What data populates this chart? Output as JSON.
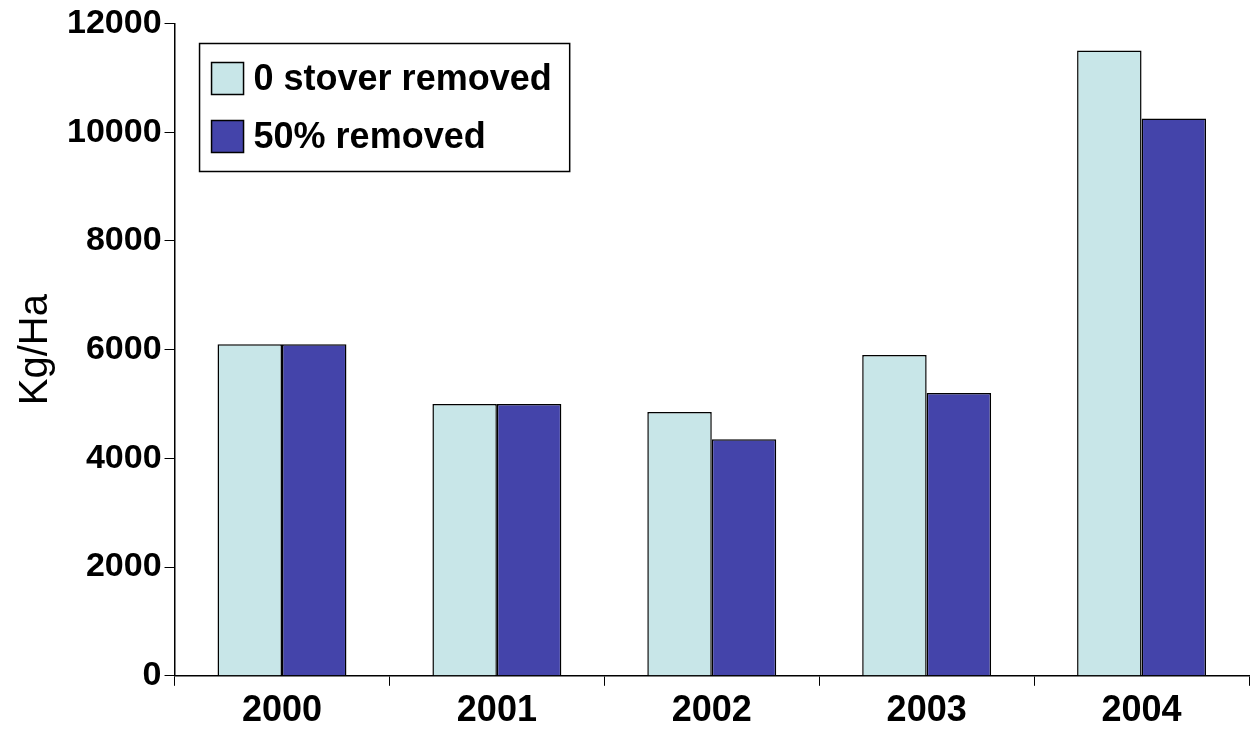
{
  "chart_data": {
    "type": "bar",
    "ylabel": "Kg/Ha",
    "categories": [
      "2000",
      "2001",
      "2002",
      "2003",
      "2004"
    ],
    "series": [
      {
        "name": "0 stover removed",
        "color": "#c8e6e8",
        "values": [
          6100,
          5000,
          4850,
          5900,
          11500
        ]
      },
      {
        "name": "50% removed",
        "color": "#4444aa",
        "values": [
          6100,
          5000,
          4350,
          5200,
          10250
        ]
      }
    ],
    "ylim": [
      0,
      12000
    ],
    "yticks": [
      0,
      2000,
      4000,
      6000,
      8000,
      10000,
      12000
    ],
    "grid": false,
    "legend": "top left"
  }
}
